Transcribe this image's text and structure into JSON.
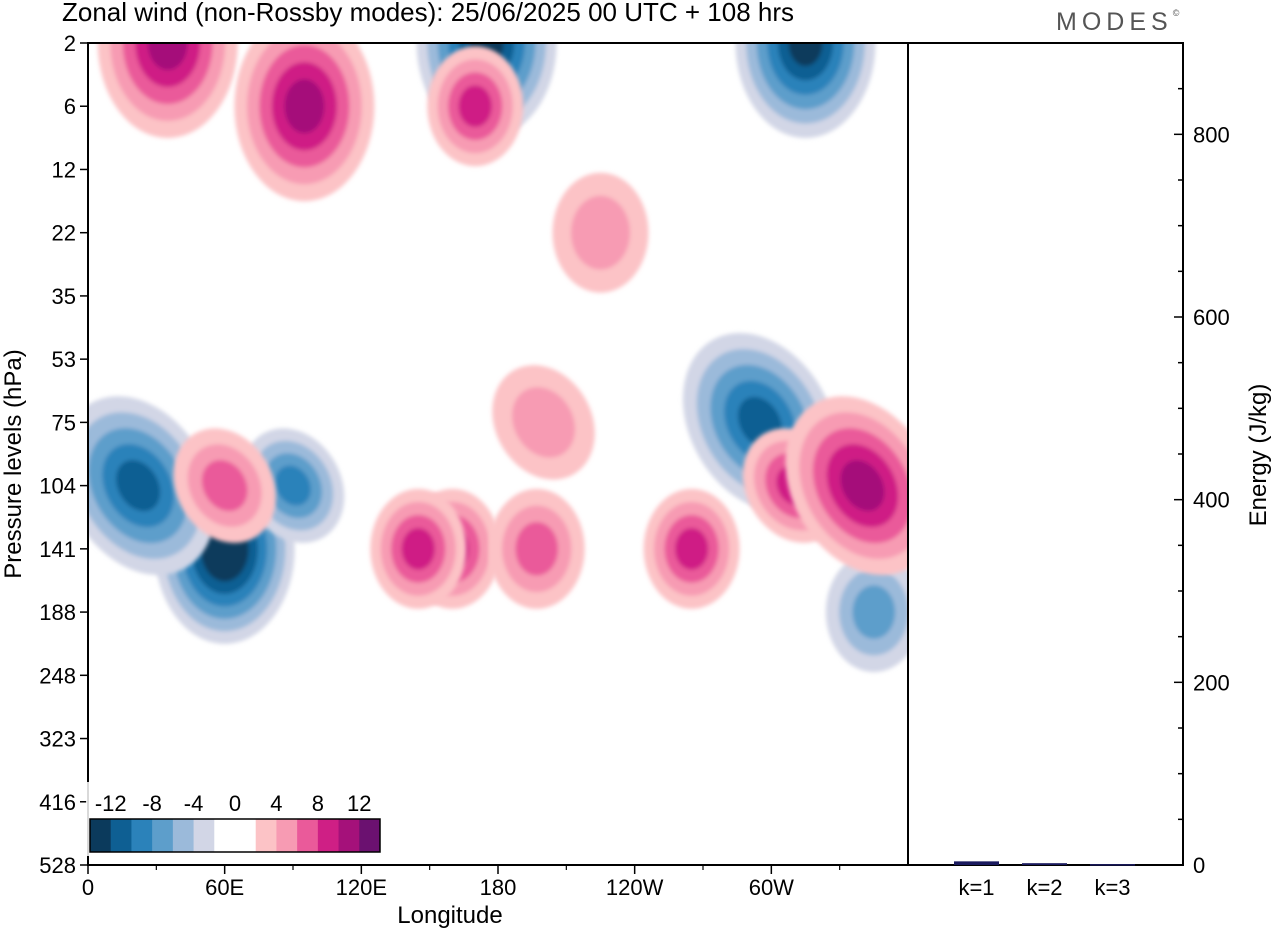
{
  "header": {
    "title": "Zonal wind (non-Rossby modes):  25/06/2025  00 UTC  + 108 hrs",
    "brand": "MODES",
    "brand_mark": "©"
  },
  "chart_data": [
    {
      "type": "heatmap",
      "xlabel": "Longitude",
      "ylabel": "Pressure levels (hPa)",
      "x_ticks": [
        "0",
        "60E",
        "120E",
        "180",
        "120W",
        "60W"
      ],
      "x_tick_degrees": [
        0,
        60,
        120,
        180,
        240,
        300
      ],
      "x_range_degrees": [
        0,
        360
      ],
      "y_levels": [
        "2",
        "6",
        "12",
        "22",
        "35",
        "53",
        "75",
        "104",
        "141",
        "188",
        "248",
        "323",
        "416",
        "528"
      ],
      "colorbar": {
        "labels": [
          "-12",
          "-8",
          "-4",
          "0",
          "4",
          "8",
          "12"
        ],
        "levels": [
          -14,
          -12,
          -10,
          -8,
          -6,
          -4,
          -2,
          0,
          2,
          4,
          6,
          8,
          10,
          12,
          14
        ],
        "colors": [
          "#0b3a5c",
          "#0e5f93",
          "#2b82ba",
          "#5d9ecb",
          "#9bbada",
          "#d2d6e6",
          "#ffffff",
          "#ffffff",
          "#fcc3c6",
          "#f79bb3",
          "#ea5a9a",
          "#cf1f85",
          "#a5117a",
          "#6b1170"
        ]
      },
      "features": [
        {
          "lon": 60,
          "level": "141",
          "value": -14
        },
        {
          "lon": 22,
          "level": "104",
          "value": -10
        },
        {
          "lon": 90,
          "level": "104",
          "value": -8
        },
        {
          "lon": 295,
          "level": "75",
          "value": -10
        },
        {
          "lon": 345,
          "level": "188",
          "value": -6
        },
        {
          "lon": 175,
          "level": "2",
          "value": -12
        },
        {
          "lon": 315,
          "level": "2",
          "value": -12
        },
        {
          "lon": 160,
          "level": "141",
          "value": 8
        },
        {
          "lon": 145,
          "level": "141",
          "value": 8
        },
        {
          "lon": 197,
          "level": "141",
          "value": 6
        },
        {
          "lon": 265,
          "level": "141",
          "value": 8
        },
        {
          "lon": 310,
          "level": "104",
          "value": 8
        },
        {
          "lon": 340,
          "level": "104",
          "value": 10
        },
        {
          "lon": 60,
          "level": "104",
          "value": 6
        },
        {
          "lon": 35,
          "level": "2",
          "value": 10
        },
        {
          "lon": 95,
          "level": "6",
          "value": 10
        },
        {
          "lon": 170,
          "level": "6",
          "value": 8
        },
        {
          "lon": 225,
          "level": "22",
          "value": 4
        },
        {
          "lon": 200,
          "level": "75",
          "value": 4
        }
      ]
    },
    {
      "type": "bar",
      "ylabel": "Energy (J/kg)",
      "categories": [
        "k=1",
        "k=2",
        "k=3"
      ],
      "values": [
        4,
        2,
        1
      ],
      "ylim": [
        0,
        900
      ],
      "y_ticks": [
        0,
        200,
        400,
        600,
        800
      ],
      "bar_color": "#1a1a5e"
    }
  ]
}
